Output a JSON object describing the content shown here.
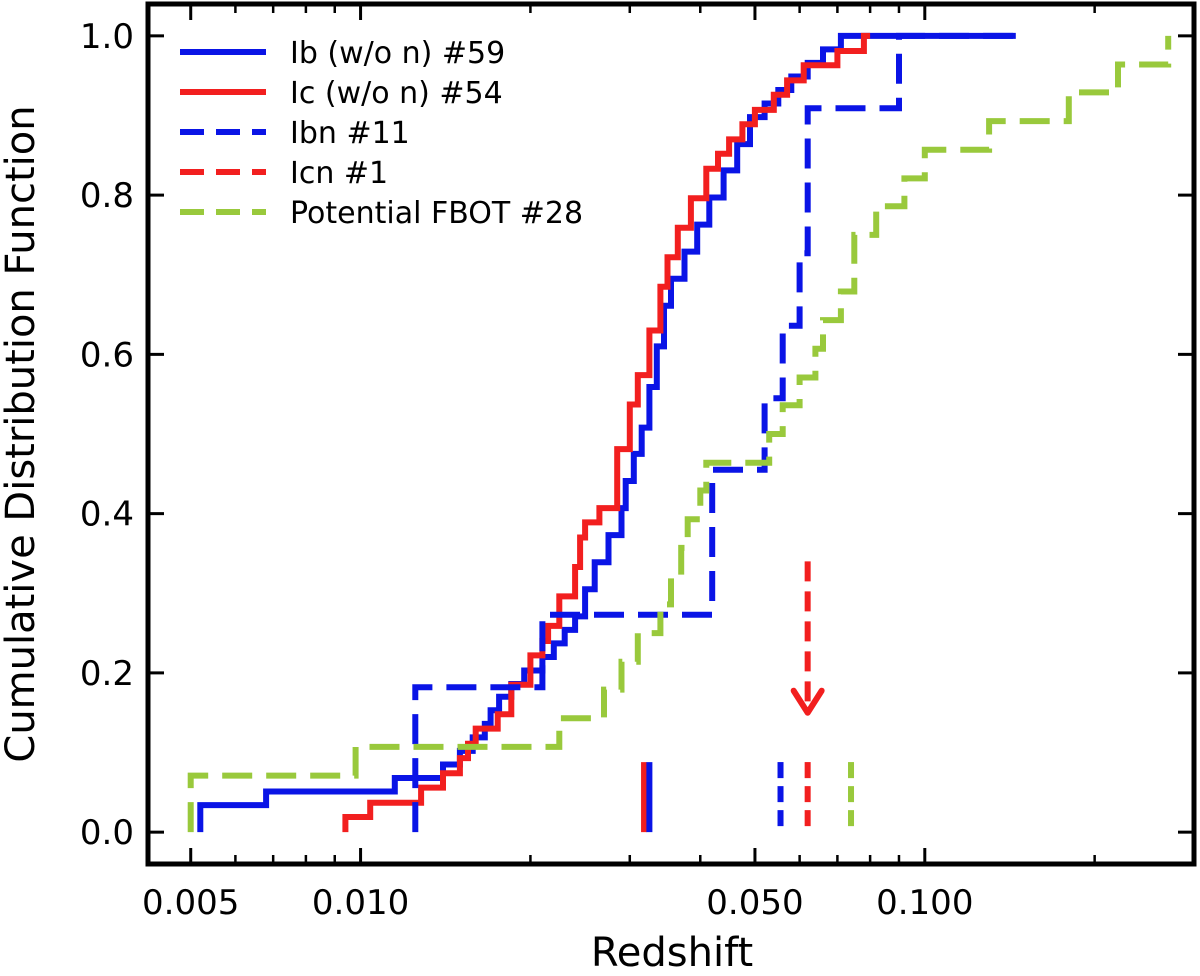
{
  "chart_data": {
    "type": "line",
    "subtype": "cumulative-step",
    "xlabel": "Redshift",
    "ylabel": "Cumulative Distribution Function",
    "xscale": "log",
    "xlim": [
      0.0042,
      0.3
    ],
    "ylim": [
      -0.04,
      1.04
    ],
    "x_ticks": [
      0.005,
      0.01,
      0.05,
      0.1
    ],
    "x_tick_labels": [
      "0.005",
      "0.010",
      "0.050",
      "0.100"
    ],
    "y_ticks": [
      0.0,
      0.2,
      0.4,
      0.6,
      0.8,
      1.0
    ],
    "y_tick_labels": [
      "0.0",
      "0.2",
      "0.4",
      "0.6",
      "0.8",
      "1.0"
    ],
    "grid": false,
    "legend_position": "top-left",
    "series": [
      {
        "name": "Ib (w/o n) #59",
        "color": "#0a14e6",
        "style": "solid",
        "x": [
          0.0052,
          0.0068,
          0.0115,
          0.014,
          0.015,
          0.0158,
          0.0166,
          0.017,
          0.0176,
          0.0185,
          0.0195,
          0.021,
          0.022,
          0.023,
          0.024,
          0.025,
          0.026,
          0.0275,
          0.029,
          0.0295,
          0.0305,
          0.0315,
          0.0325,
          0.0335,
          0.0345,
          0.0355,
          0.0375,
          0.0395,
          0.0415,
          0.044,
          0.0465,
          0.049,
          0.052,
          0.055,
          0.058,
          0.062,
          0.066,
          0.071,
          0.145
        ],
        "y": [
          0.034,
          0.051,
          0.068,
          0.085,
          0.102,
          0.119,
          0.136,
          0.153,
          0.17,
          0.186,
          0.203,
          0.22,
          0.237,
          0.254,
          0.271,
          0.305,
          0.339,
          0.373,
          0.407,
          0.441,
          0.475,
          0.508,
          0.559,
          0.61,
          0.661,
          0.695,
          0.729,
          0.763,
          0.797,
          0.831,
          0.864,
          0.898,
          0.915,
          0.932,
          0.949,
          0.966,
          0.983,
          1.0,
          1.0
        ]
      },
      {
        "name": "Ic (w/o n) #54",
        "color": "#f21f1f",
        "style": "solid",
        "x": [
          0.0094,
          0.0104,
          0.0128,
          0.014,
          0.015,
          0.0155,
          0.016,
          0.0175,
          0.0185,
          0.02,
          0.021,
          0.0215,
          0.0225,
          0.024,
          0.0245,
          0.025,
          0.0265,
          0.0285,
          0.03,
          0.031,
          0.0325,
          0.034,
          0.035,
          0.0365,
          0.0385,
          0.041,
          0.043,
          0.045,
          0.0475,
          0.05,
          0.054,
          0.057,
          0.061,
          0.065,
          0.07,
          0.078,
          0.08
        ],
        "y": [
          0.019,
          0.037,
          0.056,
          0.074,
          0.093,
          0.111,
          0.13,
          0.148,
          0.185,
          0.222,
          0.24,
          0.259,
          0.296,
          0.333,
          0.37,
          0.389,
          0.407,
          0.481,
          0.537,
          0.574,
          0.63,
          0.685,
          0.722,
          0.759,
          0.796,
          0.833,
          0.852,
          0.87,
          0.889,
          0.907,
          0.926,
          0.944,
          0.963,
          0.963,
          0.981,
          1.0,
          1.0
        ]
      },
      {
        "name": "Ibn #11",
        "color": "#0a14e6",
        "style": "dashed",
        "x": [
          0.0125,
          0.021,
          0.037,
          0.042,
          0.05,
          0.052,
          0.056,
          0.06,
          0.062,
          0.09,
          0.15
        ],
        "y": [
          0.182,
          0.273,
          0.273,
          0.455,
          0.455,
          0.545,
          0.636,
          0.727,
          0.909,
          1.0,
          1.0
        ]
      },
      {
        "name": "Icn #1",
        "color": "#f21f1f",
        "style": "dashed",
        "x": [
          0.062
        ],
        "y": [
          1.0
        ]
      },
      {
        "name": "Potential FBOT #28",
        "color": "#99c93c",
        "style": "dashed",
        "x": [
          0.005,
          0.0098,
          0.018,
          0.0225,
          0.027,
          0.029,
          0.031,
          0.034,
          0.0355,
          0.037,
          0.038,
          0.04,
          0.041,
          0.042,
          0.044,
          0.053,
          0.056,
          0.06,
          0.064,
          0.066,
          0.071,
          0.075,
          0.082,
          0.092,
          0.1,
          0.13,
          0.18,
          0.22,
          0.27
        ],
        "y": [
          0.071,
          0.107,
          0.107,
          0.143,
          0.179,
          0.214,
          0.25,
          0.286,
          0.321,
          0.357,
          0.393,
          0.429,
          0.464,
          0.464,
          0.464,
          0.5,
          0.536,
          0.571,
          0.607,
          0.643,
          0.679,
          0.75,
          0.786,
          0.821,
          0.857,
          0.893,
          0.929,
          0.964,
          1.0
        ]
      }
    ],
    "median_markers": [
      {
        "series": "Ic (w/o n) #54",
        "x": 0.0318,
        "color": "#f21f1f",
        "style": "solid"
      },
      {
        "series": "Ib (w/o n) #59",
        "x": 0.0325,
        "color": "#0a14e6",
        "style": "solid"
      },
      {
        "series": "Ibn #11",
        "x": 0.0555,
        "color": "#0a14e6",
        "style": "dashed"
      },
      {
        "series": "Icn #1",
        "x": 0.062,
        "color": "#f21f1f",
        "style": "dashed"
      },
      {
        "series": "Potential FBOT #28",
        "x": 0.074,
        "color": "#99c93c",
        "style": "dashed"
      }
    ],
    "arrow_annotation": {
      "x": 0.062,
      "y_from": 0.34,
      "y_to": 0.15,
      "color": "#f21f1f",
      "style": "dashed"
    }
  }
}
